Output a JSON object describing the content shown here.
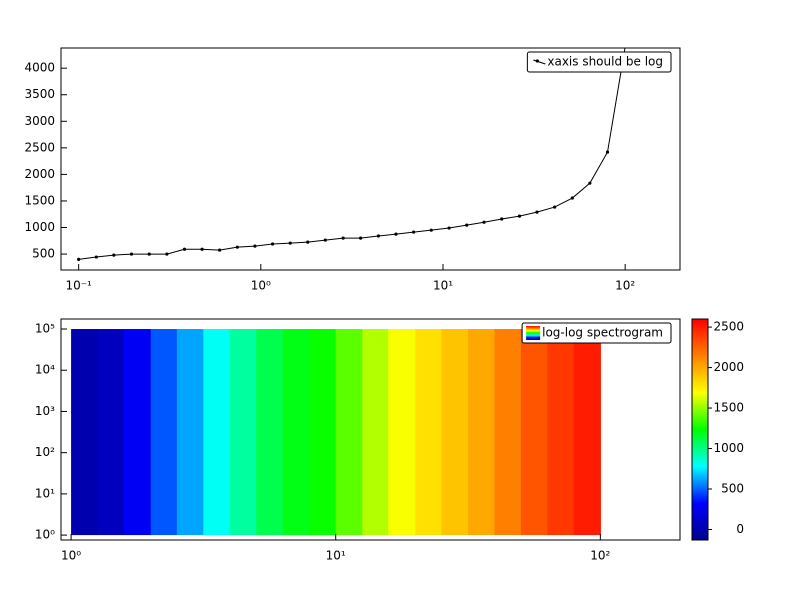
{
  "chart_data": [
    {
      "type": "line",
      "xscale": "log",
      "legend": "upper right",
      "markers": true,
      "x": [
        0.1,
        0.125,
        0.156,
        0.195,
        0.244,
        0.305,
        0.381,
        0.476,
        0.594,
        0.743,
        0.928,
        1.16,
        1.45,
        1.81,
        2.26,
        2.83,
        3.53,
        4.42,
        5.52,
        6.9,
        8.62,
        10.8,
        13.5,
        16.8,
        21.0,
        26.3,
        32.8,
        41.0,
        51.3,
        64.0,
        80.0,
        100
      ],
      "series": [
        {
          "name": "xaxis should be log",
          "color": "#000000",
          "values": [
            400,
            444,
            480,
            500,
            500,
            500,
            590,
            590,
            575,
            630,
            650,
            690,
            707,
            725,
            763,
            800,
            800,
            840,
            876,
            914,
            950,
            990,
            1045,
            1100,
            1160,
            1215,
            1290,
            1385,
            1555,
            1835,
            2420,
            4400
          ]
        }
      ],
      "xlim": [
        0.08,
        200
      ],
      "ylim": [
        200,
        4380
      ],
      "xticks": [
        {
          "value": 0.1,
          "label": "10⁻¹"
        },
        {
          "value": 1,
          "label": "10⁰"
        },
        {
          "value": 10,
          "label": "10¹"
        },
        {
          "value": 100,
          "label": "10²"
        }
      ],
      "yticks": [
        500,
        1000,
        1500,
        2000,
        2500,
        3000,
        3500,
        4000
      ]
    },
    {
      "type": "heatmap",
      "xscale": "log",
      "yscale": "log",
      "legend": "upper right",
      "legend_label": "log-log spectrogram",
      "x_edges": [
        1,
        1.26,
        1.58,
        2.0,
        2.51,
        3.16,
        3.98,
        5.01,
        6.31,
        7.94,
        10,
        12.6,
        15.8,
        20.0,
        25.1,
        31.6,
        39.8,
        50.1,
        63.1,
        79.4,
        100
      ],
      "y_edges": [
        1,
        100000
      ],
      "values": [
        0,
        60,
        280,
        480,
        620,
        800,
        950,
        1100,
        1200,
        1250,
        1400,
        1550,
        1680,
        1800,
        1900,
        2000,
        2150,
        2300,
        2400,
        2500
      ],
      "colormap": [
        "#00008f",
        "#0000ff",
        "#00ffff",
        "#00ff00",
        "#ffff00",
        "#ff8000",
        "#ff0000"
      ],
      "xlim": [
        0.916,
        200
      ],
      "ylim": [
        0.76,
        175000
      ],
      "xticks": [
        {
          "value": 1,
          "label": "10⁰"
        },
        {
          "value": 10,
          "label": "10¹"
        },
        {
          "value": 100,
          "label": "10²"
        }
      ],
      "yticks": [
        {
          "value": 1,
          "label": "10⁰"
        },
        {
          "value": 10,
          "label": "10¹"
        },
        {
          "value": 100,
          "label": "10²"
        },
        {
          "value": 1000,
          "label": "10³"
        },
        {
          "value": 10000,
          "label": "10⁴"
        },
        {
          "value": 100000,
          "label": "10⁵"
        }
      ],
      "colorbar": {
        "lim": [
          -130,
          2600
        ],
        "ticks": [
          0,
          500,
          1000,
          1500,
          2000,
          2500
        ]
      }
    }
  ]
}
